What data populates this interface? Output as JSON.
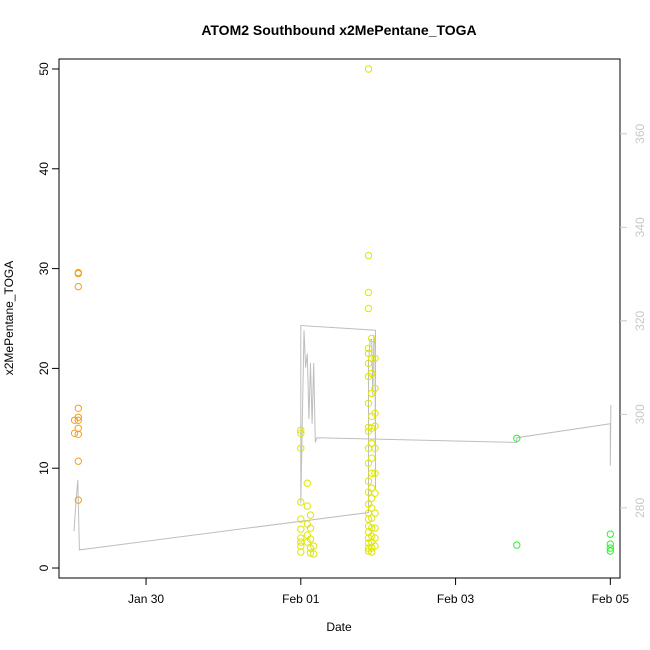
{
  "chart_data": {
    "type": "scatter",
    "title": "ATOM2 Southbound x2MePentane_TOGA",
    "xlabel": "Date",
    "ylabel": "x2MePentane_TOGA",
    "x_unit": "day",
    "xlim": [
      "2017-01-28T21:00",
      "2017-02-05T03:00"
    ],
    "ylim": [
      -1,
      51
    ],
    "y_ticks": [
      0,
      10,
      20,
      30,
      40,
      50
    ],
    "x_ticks": [
      {
        "at": "2017-01-30T00:00",
        "label": "Jan 30"
      },
      {
        "at": "2017-02-01T00:00",
        "label": "Feb 01"
      },
      {
        "at": "2017-02-03T00:00",
        "label": "Feb 03"
      },
      {
        "at": "2017-02-05T00:00",
        "label": "Feb 05"
      }
    ],
    "secondary_axis": {
      "ylim": [
        265,
        376
      ],
      "ticks": [
        280,
        300,
        320,
        340,
        360
      ],
      "color": "#c8c8c8"
    },
    "series": [
      {
        "color": "#f2a01e",
        "points": [
          [
            "2017-01-29T01:50",
            14.8
          ],
          [
            "2017-01-29T01:50",
            13.5
          ],
          [
            "2017-01-29T03:00",
            29.6
          ],
          [
            "2017-01-29T03:00",
            29.5
          ],
          [
            "2017-01-29T03:00",
            28.2
          ],
          [
            "2017-01-29T03:00",
            16.0
          ],
          [
            "2017-01-29T03:00",
            15.1
          ],
          [
            "2017-01-29T03:00",
            14.8
          ],
          [
            "2017-01-29T03:00",
            14.0
          ],
          [
            "2017-01-29T03:00",
            13.4
          ],
          [
            "2017-01-29T03:00",
            10.7
          ],
          [
            "2017-01-29T03:00",
            6.8
          ]
        ]
      },
      {
        "color": "#dfe600",
        "points": [
          [
            "2017-02-01T00:00",
            13.8
          ],
          [
            "2017-02-01T00:00",
            13.5
          ],
          [
            "2017-02-01T00:00",
            12.0
          ],
          [
            "2017-02-01T00:00",
            6.6
          ],
          [
            "2017-02-01T00:00",
            4.9
          ],
          [
            "2017-02-01T00:00",
            3.9
          ],
          [
            "2017-02-01T00:00",
            3.0
          ],
          [
            "2017-02-01T00:00",
            2.6
          ],
          [
            "2017-02-01T00:00",
            2.2
          ],
          [
            "2017-02-01T00:00",
            1.6
          ],
          [
            "2017-02-01T02:00",
            8.5
          ],
          [
            "2017-02-01T02:00",
            6.2
          ],
          [
            "2017-02-01T02:00",
            4.4
          ],
          [
            "2017-02-01T02:00",
            3.3
          ],
          [
            "2017-02-01T02:00",
            2.6
          ],
          [
            "2017-02-01T03:00",
            5.3
          ],
          [
            "2017-02-01T03:00",
            4.0
          ],
          [
            "2017-02-01T03:00",
            2.9
          ],
          [
            "2017-02-01T03:00",
            2.0
          ],
          [
            "2017-02-01T03:00",
            1.5
          ],
          [
            "2017-02-01T04:00",
            2.2
          ],
          [
            "2017-02-01T04:00",
            1.4
          ],
          [
            "2017-02-01T21:00",
            50.0
          ],
          [
            "2017-02-01T21:00",
            31.3
          ],
          [
            "2017-02-01T21:00",
            27.6
          ],
          [
            "2017-02-01T21:00",
            26.0
          ],
          [
            "2017-02-01T21:00",
            22.0
          ],
          [
            "2017-02-01T21:00",
            21.5
          ],
          [
            "2017-02-01T21:00",
            20.5
          ],
          [
            "2017-02-01T21:00",
            19.2
          ],
          [
            "2017-02-01T21:00",
            16.5
          ],
          [
            "2017-02-01T21:00",
            14.1
          ],
          [
            "2017-02-01T21:00",
            13.7
          ],
          [
            "2017-02-01T21:00",
            12.0
          ],
          [
            "2017-02-01T21:00",
            10.5
          ],
          [
            "2017-02-01T21:00",
            8.7
          ],
          [
            "2017-02-01T21:00",
            7.6
          ],
          [
            "2017-02-01T21:00",
            6.4
          ],
          [
            "2017-02-01T21:00",
            5.5
          ],
          [
            "2017-02-01T21:00",
            4.9
          ],
          [
            "2017-02-01T21:00",
            4.2
          ],
          [
            "2017-02-01T21:00",
            3.6
          ],
          [
            "2017-02-01T21:00",
            3.0
          ],
          [
            "2017-02-01T21:00",
            2.5
          ],
          [
            "2017-02-01T21:00",
            2.0
          ],
          [
            "2017-02-01T21:00",
            1.7
          ],
          [
            "2017-02-01T22:00",
            23.0
          ],
          [
            "2017-02-01T22:00",
            21.0
          ],
          [
            "2017-02-01T22:00",
            19.5
          ],
          [
            "2017-02-01T22:00",
            17.5
          ],
          [
            "2017-02-01T22:00",
            15.2
          ],
          [
            "2017-02-01T22:00",
            14.0
          ],
          [
            "2017-02-01T22:00",
            12.5
          ],
          [
            "2017-02-01T22:00",
            11.0
          ],
          [
            "2017-02-01T22:00",
            9.5
          ],
          [
            "2017-02-01T22:00",
            8.0
          ],
          [
            "2017-02-01T22:00",
            7.0
          ],
          [
            "2017-02-01T22:00",
            6.0
          ],
          [
            "2017-02-01T22:00",
            5.0
          ],
          [
            "2017-02-01T22:00",
            4.0
          ],
          [
            "2017-02-01T22:00",
            3.2
          ],
          [
            "2017-02-01T22:00",
            2.6
          ],
          [
            "2017-02-01T22:00",
            2.0
          ],
          [
            "2017-02-01T22:00",
            1.6
          ],
          [
            "2017-02-01T23:00",
            21.0
          ],
          [
            "2017-02-01T23:00",
            18.0
          ],
          [
            "2017-02-01T23:00",
            15.5
          ],
          [
            "2017-02-01T23:00",
            14.2
          ],
          [
            "2017-02-01T23:00",
            12.0
          ],
          [
            "2017-02-01T23:00",
            9.5
          ],
          [
            "2017-02-01T23:00",
            7.5
          ],
          [
            "2017-02-01T23:00",
            5.5
          ],
          [
            "2017-02-01T23:00",
            4.0
          ],
          [
            "2017-02-01T23:00",
            3.0
          ],
          [
            "2017-02-01T23:00",
            2.2
          ]
        ]
      },
      {
        "color": "#33ee33",
        "points": [
          [
            "2017-02-03T19:00",
            13.0
          ],
          [
            "2017-02-03T19:00",
            2.3
          ],
          [
            "2017-02-05T00:00",
            3.4
          ],
          [
            "2017-02-05T00:00",
            2.4
          ],
          [
            "2017-02-05T00:00",
            2.0
          ],
          [
            "2017-02-05T00:00",
            1.7
          ]
        ]
      }
    ],
    "line": {
      "color": "#bebebe",
      "axis": "secondary",
      "points": [
        [
          "2017-01-29T01:40",
          275
        ],
        [
          "2017-01-29T02:20",
          282
        ],
        [
          "2017-01-29T02:50",
          286
        ],
        [
          "2017-01-29T03:20",
          271
        ],
        [
          "2017-02-01T21:00",
          279
        ],
        [
          "2017-02-01T21:00",
          311
        ],
        [
          "2017-02-01T21:30",
          316
        ],
        [
          "2017-02-01T22:00",
          316
        ],
        [
          "2017-02-01T22:20",
          304
        ],
        [
          "2017-02-01T22:40",
          317
        ],
        [
          "2017-02-01T23:00",
          315
        ],
        [
          "2017-02-01T23:10",
          284
        ],
        [
          "2017-02-01T23:10",
          318
        ],
        [
          "2017-02-01T00:00",
          319
        ],
        [
          "2017-02-01T00:00",
          281
        ],
        [
          "2017-02-01T01:00",
          318
        ],
        [
          "2017-02-01T01:30",
          310
        ],
        [
          "2017-02-01T02:00",
          313
        ],
        [
          "2017-02-01T02:30",
          299
        ],
        [
          "2017-02-01T03:00",
          311
        ],
        [
          "2017-02-01T03:30",
          298
        ],
        [
          "2017-02-01T04:00",
          311
        ],
        [
          "2017-02-01T04:30",
          294
        ],
        [
          "2017-02-01T05:00",
          295
        ],
        [
          "2017-02-03T19:00",
          294
        ],
        [
          "2017-02-03T19:00",
          295
        ],
        [
          "2017-02-05T00:00",
          298
        ],
        [
          "2017-02-05T00:00",
          289
        ],
        [
          "2017-02-05T00:10",
          302
        ]
      ]
    }
  }
}
